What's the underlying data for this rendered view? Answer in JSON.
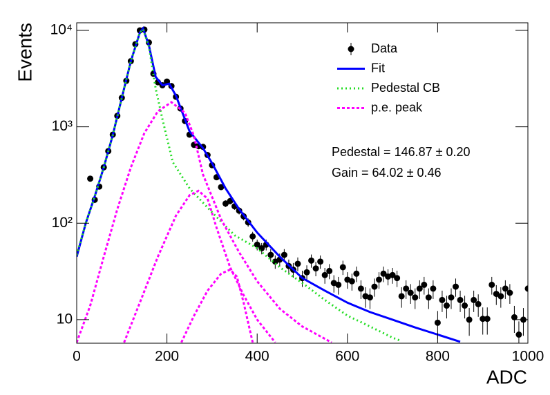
{
  "chart_data": {
    "type": "line",
    "y_label": "Events",
    "x_label": "ADC",
    "log_y": true,
    "xlim": [
      0,
      1000
    ],
    "xticks": [
      0,
      200,
      400,
      600,
      800,
      1000
    ],
    "ylim": [
      5.7,
      12000
    ],
    "yticks": [
      10,
      {
        "value": 100,
        "label": "10²"
      },
      {
        "value": 1000,
        "label": "10³"
      },
      {
        "value": 10000,
        "label": "10⁴"
      }
    ],
    "legend": "top-right",
    "annotations": [
      "Pedestal = 146.87 ± 0.20",
      "Gain = 64.02 ± 0.46"
    ],
    "series": [
      {
        "name": "Data",
        "color": "#000000",
        "style": "points",
        "x": [
          30,
          40,
          50,
          60,
          70,
          80,
          90,
          100,
          110,
          120,
          130,
          140,
          150,
          160,
          170,
          180,
          190,
          200,
          210,
          220,
          230,
          240,
          250,
          260,
          270,
          280,
          290,
          300,
          310,
          320,
          330,
          340,
          350,
          360,
          370,
          380,
          390,
          400,
          410,
          420,
          430,
          440,
          450,
          460,
          470,
          480,
          490,
          500,
          510,
          520,
          530,
          540,
          550,
          560,
          570,
          580,
          590,
          600,
          610,
          620,
          630,
          640,
          650,
          660,
          670,
          680,
          690,
          700,
          710,
          720,
          730,
          740,
          750,
          760,
          770,
          780,
          790,
          800,
          810,
          820,
          830,
          840,
          850,
          860,
          870,
          880,
          890,
          900,
          910,
          920,
          930,
          940,
          950,
          960,
          970,
          980,
          990,
          1000
        ],
        "values": [
          290,
          175,
          240,
          380,
          560,
          830,
          1300,
          2000,
          3000,
          4800,
          7200,
          10000,
          10200,
          7500,
          3550,
          2900,
          2700,
          2950,
          2650,
          2050,
          1550,
          1150,
          830,
          650,
          630,
          620,
          510,
          400,
          300,
          237,
          160,
          170,
          150,
          135,
          118,
          102,
          73,
          60,
          55,
          60,
          47,
          40,
          42,
          47,
          36,
          33,
          38,
          27,
          31,
          41,
          34,
          40,
          29,
          32,
          24,
          23,
          35,
          26,
          25,
          30,
          21,
          17.5,
          17,
          22,
          26,
          30,
          28,
          29,
          27,
          17.5,
          21,
          19,
          17,
          21,
          23,
          17,
          21,
          9.3,
          16,
          14,
          17,
          22,
          16,
          14,
          10,
          16,
          14.5,
          10.2,
          10.2,
          23,
          18.5,
          17.5,
          21,
          19,
          10.6,
          7,
          10,
          21
        ],
        "errors": [
          17,
          13.2,
          15.5,
          19.5,
          23.7,
          28.8,
          36,
          44.7,
          54.8,
          69.3,
          84.9,
          100,
          101,
          86.6,
          59.6,
          53.9,
          52,
          54.3,
          51.5,
          45.3,
          39.4,
          33.9,
          28.8,
          25.5,
          25.1,
          24.9,
          22.6,
          20,
          17.3,
          15.4,
          12.6,
          13,
          12.2,
          11.6,
          10.9,
          10.1,
          8.5,
          7.7,
          7.4,
          7.7,
          6.9,
          6.3,
          6.5,
          6.9,
          6,
          5.7,
          6.2,
          5.2,
          5.6,
          6.4,
          5.8,
          6.3,
          5.4,
          5.7,
          4.9,
          4.8,
          5.9,
          5.1,
          5,
          5.5,
          4.6,
          4.2,
          4.1,
          4.7,
          5.1,
          5.5,
          5.3,
          5.4,
          5.2,
          4.2,
          4.6,
          4.4,
          4.1,
          4.6,
          4.8,
          4.1,
          4.6,
          3,
          4,
          3.7,
          4.1,
          4.7,
          4,
          3.7,
          3.2,
          4,
          3.8,
          3.2,
          3.2,
          4.8,
          4.3,
          4.2,
          4.6,
          4.4,
          3.3,
          2.6,
          3.2,
          4.6
        ]
      },
      {
        "name": "Fit",
        "color": "#0000ff",
        "style": "solid",
        "x": [
          0,
          20,
          40,
          60,
          80,
          100,
          120,
          140,
          147,
          160,
          175,
          190,
          205,
          220,
          250,
          280,
          300,
          330,
          360,
          400,
          450,
          500,
          550,
          600,
          650,
          700,
          750,
          800,
          850
        ],
        "values": [
          45,
          100,
          190,
          380,
          820,
          2000,
          4800,
          9500,
          10500,
          7000,
          3300,
          2700,
          2800,
          2100,
          900,
          600,
          420,
          230,
          140,
          80,
          45,
          27,
          20,
          15,
          12,
          10,
          8.3,
          7,
          5.9
        ]
      },
      {
        "name": "Pedestal CB",
        "color": "#22dd22",
        "style": "dotted",
        "x": [
          0,
          20,
          40,
          60,
          80,
          100,
          120,
          140,
          147,
          160,
          175,
          190,
          213,
          250,
          300,
          350,
          400,
          450,
          500,
          550,
          600,
          650,
          700,
          720
        ],
        "values": [
          47,
          100,
          190,
          380,
          820,
          2000,
          4800,
          9500,
          10300,
          6800,
          2500,
          1200,
          430,
          230,
          130,
          75,
          55,
          35,
          24,
          16,
          11,
          8.5,
          6.5,
          6
        ]
      },
      {
        "name": "p.e. peak",
        "color": "#ff00ff",
        "style": "dashed",
        "x": [
          0,
          30,
          60,
          90,
          120,
          150,
          180,
          210,
          240,
          260,
          280,
          320,
          360,
          400,
          450,
          500,
          565
        ],
        "values": [
          5.8,
          14,
          45,
          140,
          380,
          860,
          1450,
          1800,
          1400,
          800,
          320,
          110,
          50,
          25,
          13,
          8.5,
          5.8
        ]
      },
      {
        "color": "#ff00ff",
        "style": "dashed",
        "x": [
          105,
          140,
          180,
          220,
          250,
          270,
          290,
          310,
          340,
          370,
          400,
          440
        ],
        "values": [
          5.8,
          15,
          45,
          120,
          195,
          217,
          180,
          90,
          35,
          18,
          10,
          5.8
        ]
      },
      {
        "color": "#ff00ff",
        "style": "dashed",
        "x": [
          232,
          260,
          290,
          320,
          340,
          355,
          370,
          390
        ],
        "values": [
          5.8,
          11,
          20,
          30,
          33,
          28,
          15,
          5.8
        ]
      }
    ]
  }
}
